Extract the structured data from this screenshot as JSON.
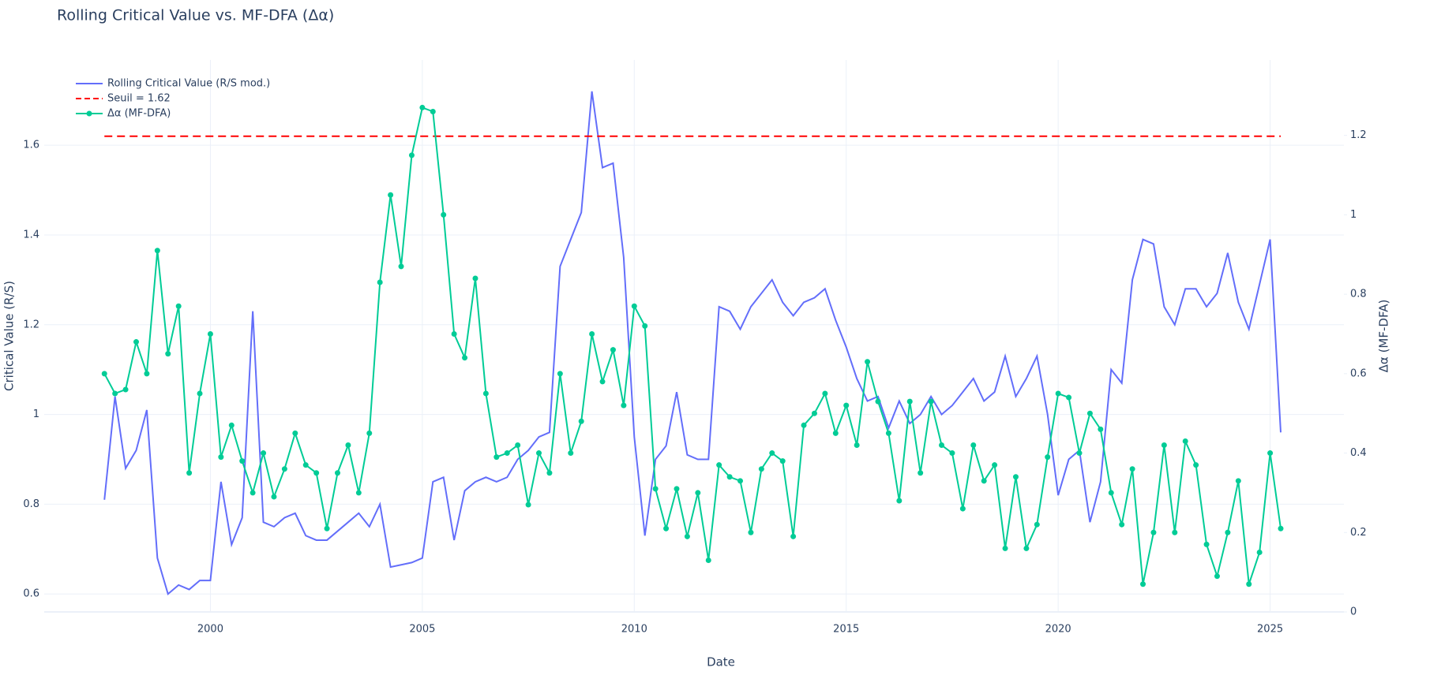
{
  "chart_data": {
    "type": "line",
    "title": "Rolling Critical Value vs. MF-DFA (Δα)",
    "x_label": "Date",
    "y_label": "Critical Value (R/S)",
    "y2_label": "Δα (MF-DFA)",
    "xlim": [
      1996.08,
      2026.74
    ],
    "xticks": [
      2000,
      2005,
      2010,
      2015,
      2020,
      2025
    ],
    "ylim": [
      0.56,
      1.79
    ],
    "yticks": [
      0.6,
      0.8,
      1,
      1.2,
      1.4,
      1.6
    ],
    "y2lim": [
      0,
      1.39
    ],
    "y2ticks": [
      0,
      0.2,
      0.4,
      0.6,
      0.8,
      1,
      1.2
    ],
    "grid": true,
    "legend": "top-left",
    "x": [
      1997.5,
      1997.75,
      1998,
      1998.25,
      1998.5,
      1998.75,
      1999,
      1999.25,
      1999.5,
      1999.75,
      2000,
      2000.25,
      2000.5,
      2000.75,
      2001,
      2001.25,
      2001.5,
      2001.75,
      2002,
      2002.25,
      2002.5,
      2002.75,
      2003,
      2003.25,
      2003.5,
      2003.75,
      2004,
      2004.25,
      2004.5,
      2004.75,
      2005,
      2005.25,
      2005.5,
      2005.75,
      2006,
      2006.25,
      2006.5,
      2006.75,
      2007,
      2007.25,
      2007.5,
      2007.75,
      2008,
      2008.25,
      2008.5,
      2008.75,
      2009,
      2009.25,
      2009.5,
      2009.75,
      2010,
      2010.25,
      2010.5,
      2010.75,
      2011,
      2011.25,
      2011.5,
      2011.75,
      2012,
      2012.25,
      2012.5,
      2012.75,
      2013,
      2013.25,
      2013.5,
      2013.75,
      2014,
      2014.25,
      2014.5,
      2014.75,
      2015,
      2015.25,
      2015.5,
      2015.75,
      2016,
      2016.25,
      2016.5,
      2016.75,
      2017,
      2017.25,
      2017.5,
      2017.75,
      2018,
      2018.25,
      2018.5,
      2018.75,
      2019,
      2019.25,
      2019.5,
      2019.75,
      2020,
      2020.25,
      2020.5,
      2020.75,
      2021,
      2021.25,
      2021.5,
      2021.75,
      2022,
      2022.25,
      2022.5,
      2022.75,
      2023,
      2023.25,
      2023.5,
      2023.75,
      2024,
      2024.25,
      2024.5,
      2024.75,
      2025,
      2025.25
    ],
    "series": [
      {
        "name": "Rolling Critical Value (R/S mod.)",
        "color": "#636efa",
        "axis": "y",
        "markers": false,
        "values": [
          0.81,
          1.04,
          0.88,
          0.92,
          1.01,
          0.68,
          0.6,
          0.62,
          0.61,
          0.63,
          0.63,
          0.85,
          0.71,
          0.77,
          1.23,
          0.76,
          0.75,
          0.77,
          0.78,
          0.73,
          0.72,
          0.72,
          0.74,
          0.76,
          0.78,
          0.75,
          0.8,
          0.66,
          0.665,
          0.67,
          0.68,
          0.85,
          0.86,
          0.72,
          0.83,
          0.85,
          0.86,
          0.85,
          0.86,
          0.9,
          0.92,
          0.95,
          0.96,
          1.33,
          1.39,
          1.45,
          1.72,
          1.55,
          1.56,
          1.35,
          0.95,
          0.73,
          0.9,
          0.93,
          1.05,
          0.91,
          0.9,
          0.9,
          1.24,
          1.23,
          1.19,
          1.24,
          1.27,
          1.3,
          1.25,
          1.22,
          1.25,
          1.26,
          1.28,
          1.21,
          1.15,
          1.08,
          1.03,
          1.04,
          0.97,
          1.03,
          0.98,
          1,
          1.04,
          1,
          1.02,
          1.05,
          1.08,
          1.03,
          1.05,
          1.13,
          1.04,
          1.08,
          1.13,
          1,
          0.82,
          0.9,
          0.92,
          0.76,
          0.85,
          1.1,
          1.07,
          1.3,
          1.39,
          1.38,
          1.24,
          1.2,
          1.28,
          1.28,
          1.24,
          1.27,
          1.36,
          1.25,
          1.19,
          1.29,
          1.39,
          0.96
        ]
      },
      {
        "name": "Seuil = 1.62",
        "color": "#ff0000",
        "axis": "y",
        "dash": true,
        "value": 1.62
      },
      {
        "name": "Δα (MF-DFA)",
        "color": "#00cc96",
        "axis": "y2",
        "markers": true,
        "values": [
          0.6,
          0.55,
          0.56,
          0.68,
          0.6,
          0.91,
          0.65,
          0.77,
          0.35,
          0.55,
          0.7,
          0.39,
          0.47,
          0.38,
          0.3,
          0.4,
          0.29,
          0.36,
          0.45,
          0.37,
          0.35,
          0.21,
          0.35,
          0.42,
          0.3,
          0.45,
          0.83,
          1.05,
          0.87,
          1.15,
          1.27,
          1.26,
          1,
          0.7,
          0.64,
          0.84,
          0.55,
          0.39,
          0.4,
          0.42,
          0.27,
          0.4,
          0.35,
          0.6,
          0.4,
          0.48,
          0.7,
          0.58,
          0.66,
          0.52,
          0.77,
          0.72,
          0.31,
          0.21,
          0.31,
          0.19,
          0.3,
          0.13,
          0.37,
          0.34,
          0.33,
          0.2,
          0.36,
          0.4,
          0.38,
          0.19,
          0.47,
          0.5,
          0.55,
          0.45,
          0.52,
          0.42,
          0.63,
          0.53,
          0.45,
          0.28,
          0.53,
          0.35,
          0.53,
          0.42,
          0.4,
          0.26,
          0.42,
          0.33,
          0.37,
          0.16,
          0.34,
          0.16,
          0.22,
          0.39,
          0.55,
          0.54,
          0.4,
          0.5,
          0.46,
          0.3,
          0.22,
          0.36,
          0.07,
          0.2,
          0.42,
          0.2,
          0.43,
          0.37,
          0.17,
          0.09,
          0.2,
          0.33,
          0.07,
          0.15,
          0.4,
          0.21
        ]
      }
    ]
  }
}
